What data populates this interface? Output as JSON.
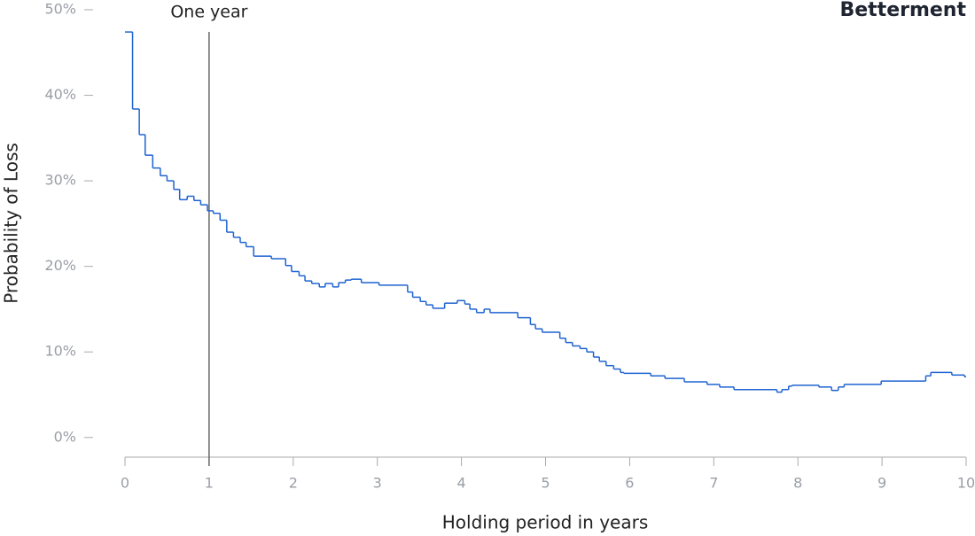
{
  "chart_data": {
    "type": "step",
    "brand": "Betterment",
    "y_label": "Probability of Loss",
    "x_label": "Holding period in years",
    "annotation": {
      "x": 1,
      "label": "One year"
    },
    "color": "#1f63d1",
    "xlim": [
      0,
      10
    ],
    "xticks": [
      0,
      1,
      2,
      3,
      4,
      5,
      6,
      7,
      8,
      9,
      10
    ],
    "ylim": [
      -2.3,
      50
    ],
    "yticks": [
      {
        "value": 0,
        "label": "0%"
      },
      {
        "value": 10,
        "label": "10%"
      },
      {
        "value": 20,
        "label": "20%"
      },
      {
        "value": 30,
        "label": "30%"
      },
      {
        "value": 40,
        "label": "40%"
      },
      {
        "value": 50,
        "label": "50%"
      }
    ],
    "x": [
      0,
      0.09,
      0.17,
      0.24,
      0.33,
      0.42,
      0.5,
      0.58,
      0.65,
      0.74,
      0.82,
      0.9,
      0.98,
      1.05,
      1.13,
      1.21,
      1.29,
      1.37,
      1.44,
      1.53,
      1.74,
      1.91,
      1.98,
      2.07,
      2.14,
      2.22,
      2.31,
      2.38,
      2.47,
      2.54,
      2.62,
      2.69,
      2.81,
      3.02,
      3.36,
      3.42,
      3.51,
      3.58,
      3.66,
      3.8,
      3.95,
      4.04,
      4.1,
      4.18,
      4.27,
      4.34,
      4.67,
      4.82,
      4.88,
      4.96,
      5.17,
      5.24,
      5.32,
      5.41,
      5.49,
      5.57,
      5.64,
      5.72,
      5.81,
      5.89,
      5.93,
      6.25,
      6.42,
      6.65,
      6.92,
      7.07,
      7.24,
      7.75,
      7.81,
      7.89,
      7.93,
      8.25,
      8.4,
      8.48,
      8.55,
      8.99,
      9.52,
      9.58,
      9.83,
      9.98
    ],
    "values": [
      47.4,
      38.4,
      35.4,
      33.0,
      31.5,
      30.6,
      30.0,
      29.0,
      27.8,
      28.2,
      27.7,
      27.2,
      26.5,
      26.2,
      25.4,
      24.0,
      23.4,
      22.8,
      22.3,
      21.2,
      20.9,
      20.1,
      19.4,
      18.9,
      18.3,
      18.0,
      17.6,
      18.0,
      17.6,
      18.1,
      18.4,
      18.5,
      18.1,
      17.8,
      17.0,
      16.4,
      15.9,
      15.5,
      15.1,
      15.7,
      16.0,
      15.6,
      15.0,
      14.6,
      15.0,
      14.6,
      14.0,
      13.2,
      12.7,
      12.3,
      11.6,
      11.1,
      10.7,
      10.4,
      10.0,
      9.4,
      8.9,
      8.4,
      8.0,
      7.6,
      7.5,
      7.2,
      6.9,
      6.5,
      6.2,
      5.9,
      5.6,
      5.3,
      5.6,
      6.0,
      6.1,
      5.9,
      5.5,
      5.9,
      6.2,
      6.6,
      7.2,
      7.6,
      7.3,
      7.1
    ]
  }
}
